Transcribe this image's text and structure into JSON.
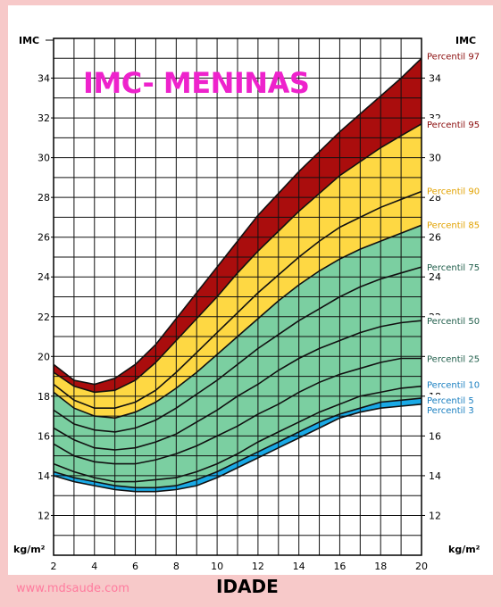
{
  "title": "IMC- MENINAS",
  "site": "www.mdsaude.com",
  "colors": {
    "page_bg": "#f7c9c9",
    "band_97": "#aa0d0d",
    "band_95_85": "#fed843",
    "band_85_5": "#7bcfa1",
    "band_5_3": "#19a9e6",
    "grid": "#111111",
    "title": "#ee22cc",
    "site": "#ff7b9e"
  },
  "chart_data": {
    "type": "line",
    "title": "IMC- MENINAS",
    "xlabel": "IDADE",
    "ylabel": "IMC",
    "y_unit": "kg/m²",
    "xlim": [
      2,
      20
    ],
    "ylim": [
      10,
      36
    ],
    "x_ticks": [
      "2",
      "4",
      "6",
      "8",
      "10",
      "12",
      "14",
      "16",
      "18",
      "20"
    ],
    "y_ticks": [
      "12",
      "14",
      "16",
      "18",
      "20",
      "22",
      "24",
      "26",
      "28",
      "30",
      "32",
      "34"
    ],
    "grid": true,
    "x": [
      2,
      3,
      4,
      5,
      6,
      7,
      8,
      9,
      10,
      11,
      12,
      13,
      14,
      15,
      16,
      17,
      18,
      19,
      20
    ],
    "series": [
      {
        "name": "Percentil 3",
        "color": "#1a8bd0",
        "values": [
          14.0,
          13.7,
          13.5,
          13.3,
          13.2,
          13.2,
          13.3,
          13.5,
          13.9,
          14.4,
          14.9,
          15.4,
          15.9,
          16.4,
          16.9,
          17.2,
          17.4,
          17.5,
          17.6
        ]
      },
      {
        "name": "Percentil 5",
        "color": "#1a8bd0",
        "values": [
          14.2,
          13.9,
          13.7,
          13.5,
          13.4,
          13.4,
          13.5,
          13.8,
          14.2,
          14.7,
          15.2,
          15.7,
          16.2,
          16.7,
          17.1,
          17.4,
          17.7,
          17.8,
          17.9
        ]
      },
      {
        "name": "Percentil 10",
        "color": "#1a6fa0",
        "values": [
          14.6,
          14.2,
          13.9,
          13.7,
          13.7,
          13.8,
          13.9,
          14.2,
          14.6,
          15.1,
          15.7,
          16.2,
          16.7,
          17.2,
          17.6,
          18.0,
          18.2,
          18.4,
          18.5
        ]
      },
      {
        "name": "Percentil 25",
        "color": "#1a6b4a",
        "values": [
          15.6,
          15.0,
          14.7,
          14.6,
          14.6,
          14.8,
          15.1,
          15.5,
          16.0,
          16.5,
          17.1,
          17.6,
          18.2,
          18.7,
          19.1,
          19.4,
          19.7,
          19.9,
          19.9
        ]
      },
      {
        "name": "Percentil 50",
        "color": "#1a6b4a",
        "values": [
          16.4,
          15.8,
          15.4,
          15.3,
          15.4,
          15.7,
          16.1,
          16.7,
          17.3,
          18.0,
          18.6,
          19.3,
          19.9,
          20.4,
          20.8,
          21.2,
          21.5,
          21.7,
          21.8
        ]
      },
      {
        "name": "Percentil 75",
        "color": "#1a6b4a",
        "values": [
          17.3,
          16.6,
          16.3,
          16.2,
          16.4,
          16.8,
          17.4,
          18.1,
          18.8,
          19.6,
          20.4,
          21.1,
          21.8,
          22.4,
          23.0,
          23.5,
          23.9,
          24.2,
          24.5
        ]
      },
      {
        "name": "Percentil 85",
        "color": "#d8a000",
        "values": [
          18.2,
          17.4,
          17.0,
          16.9,
          17.2,
          17.7,
          18.4,
          19.2,
          20.1,
          21.0,
          21.9,
          22.8,
          23.6,
          24.3,
          24.9,
          25.4,
          25.8,
          26.2,
          26.6
        ]
      },
      {
        "name": "Percentil 90",
        "color": "#d8a000",
        "values": [
          18.6,
          17.8,
          17.4,
          17.4,
          17.7,
          18.3,
          19.2,
          20.2,
          21.2,
          22.2,
          23.2,
          24.1,
          25.0,
          25.8,
          26.5,
          27.0,
          27.5,
          27.9,
          28.3
        ]
      },
      {
        "name": "Percentil 95",
        "color": "#7a0a0a",
        "values": [
          19.2,
          18.5,
          18.2,
          18.3,
          18.8,
          19.7,
          20.8,
          21.9,
          23.0,
          24.2,
          25.3,
          26.3,
          27.3,
          28.2,
          29.1,
          29.8,
          30.5,
          31.1,
          31.7
        ]
      },
      {
        "name": "Percentil 97",
        "color": "#7a0a0a",
        "values": [
          19.6,
          18.8,
          18.6,
          18.9,
          19.6,
          20.6,
          21.9,
          23.2,
          24.5,
          25.8,
          27.1,
          28.2,
          29.3,
          30.3,
          31.3,
          32.2,
          33.1,
          34.0,
          35.0
        ]
      }
    ],
    "band_fills": [
      {
        "from": "Percentil 3",
        "to": "Percentil 5",
        "color": "#19a9e6"
      },
      {
        "from": "Percentil 5",
        "to": "Percentil 85",
        "color": "#7bcfa1"
      },
      {
        "from": "Percentil 85",
        "to": "Percentil 95",
        "color": "#fed843"
      },
      {
        "from": "Percentil 95",
        "to": "Percentil 97",
        "color": "#aa0d0d"
      }
    ],
    "labels": [
      {
        "series": "Percentil 97",
        "text": "Percentil 97",
        "color": "#8a0b0b"
      },
      {
        "series": "Percentil 95",
        "text": "Percentil 95",
        "color": "#8a0b0b"
      },
      {
        "series": "Percentil 90",
        "text": "Percentil 90",
        "color": "#e2a200"
      },
      {
        "series": "Percentil 85",
        "text": "Percentil 85",
        "color": "#e2a200"
      },
      {
        "series": "Percentil 75",
        "text": "Percentil 75",
        "color": "#1f5d4a"
      },
      {
        "series": "Percentil 50",
        "text": "Percentil 50",
        "color": "#1f5d4a"
      },
      {
        "series": "Percentil 25",
        "text": "Percentil 25",
        "color": "#1f5d4a"
      },
      {
        "series": "Percentil 10",
        "text": "Percentil 10",
        "color": "#1a7fc0"
      },
      {
        "series": "Percentil 5",
        "text": "Percentil 5",
        "color": "#1a7fc0"
      },
      {
        "series": "Percentil 3",
        "text": "Percentil 3",
        "color": "#1a7fc0"
      }
    ]
  }
}
